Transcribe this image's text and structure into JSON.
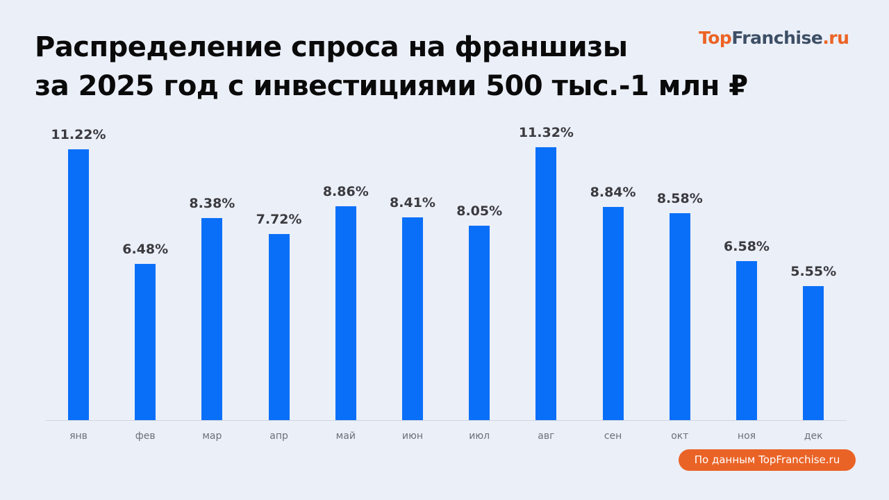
{
  "title": {
    "line1": "Распределение спроса на франшизы",
    "line2": "за 2025 год с инвестициями 500 тыс.-1 млн ₽"
  },
  "logo": {
    "part1": "Top",
    "part2": "Franchise",
    "part3": ".ru"
  },
  "source_badge": "По данным TopFranchise.ru",
  "colors": {
    "bar": "#0a6ff8",
    "accent": "#ea6326",
    "background": "#ebeff8"
  },
  "chart_data": {
    "type": "bar",
    "title": "Распределение спроса на франшизы за 2025 год с инвестициями 500 тыс.-1 млн ₽",
    "xlabel": "",
    "ylabel": "",
    "categories": [
      "янв",
      "фев",
      "мар",
      "апр",
      "май",
      "июн",
      "июл",
      "авг",
      "сен",
      "окт",
      "ноя",
      "дек"
    ],
    "values": [
      11.22,
      6.48,
      8.38,
      7.72,
      8.86,
      8.41,
      8.05,
      11.32,
      8.84,
      8.58,
      6.58,
      5.55
    ],
    "value_labels": [
      "11.22%",
      "6.48%",
      "8.38%",
      "7.72%",
      "8.86%",
      "8.41%",
      "8.05%",
      "11.32%",
      "8.84%",
      "8.58%",
      "6.58%",
      "5.55%"
    ],
    "unit": "%",
    "grid": false,
    "legend": null,
    "ylim": [
      0,
      12
    ]
  }
}
